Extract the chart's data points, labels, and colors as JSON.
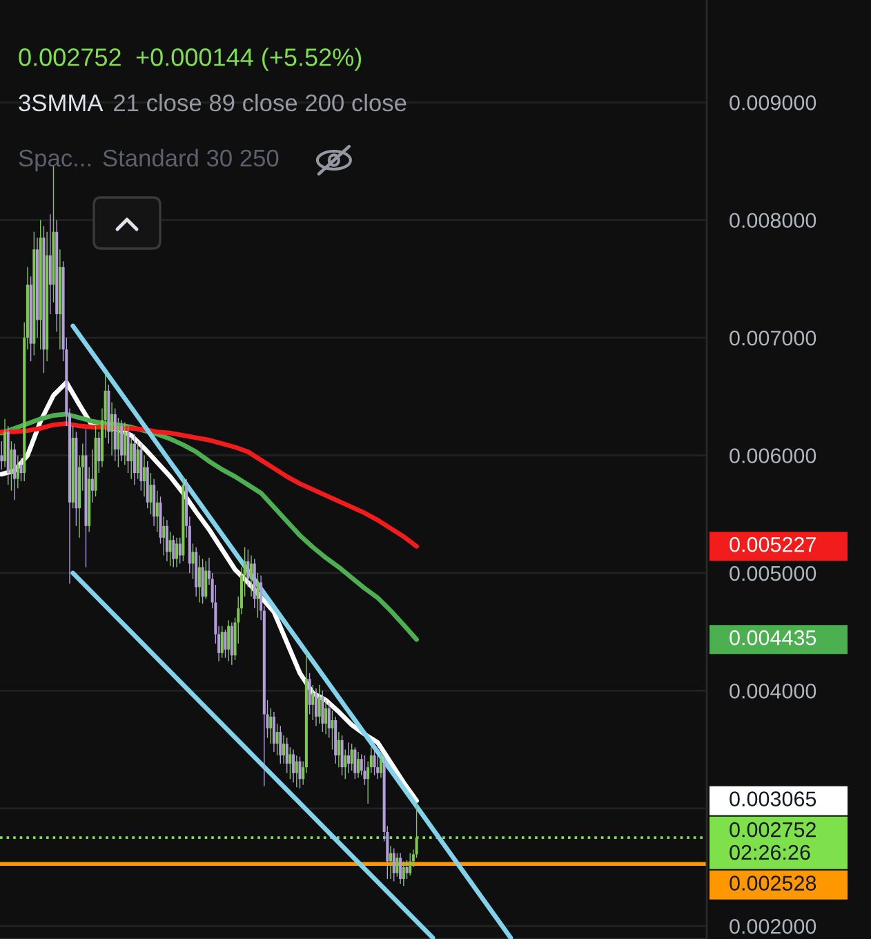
{
  "chart_data": {
    "type": "candlestick",
    "title": "0.002752",
    "subtitle": "+0.000144 (+5.52%)",
    "annotations": [
      "3SMMA",
      "21 close 89 close 200 close",
      "Spac...",
      "Standard 30 250",
      "0.003065",
      "0.004435",
      "0.005227"
    ],
    "categories": [
      null,
      null,
      null,
      null,
      null,
      null,
      null,
      null,
      null,
      null,
      null,
      null,
      null,
      null,
      null,
      null,
      null,
      null,
      null,
      null,
      null,
      null,
      null,
      null,
      null,
      null,
      null,
      null,
      null,
      null,
      null,
      null,
      null,
      null,
      null,
      null,
      null,
      null,
      null,
      null,
      null,
      null,
      null,
      null,
      null,
      null,
      null,
      null,
      null,
      null,
      null,
      null,
      null,
      null,
      null,
      null,
      null,
      null,
      null,
      null,
      null,
      null,
      null,
      null,
      null,
      null,
      null,
      null,
      null,
      null,
      null,
      null,
      null,
      null,
      null,
      null,
      null,
      null,
      null,
      null,
      null,
      null,
      null,
      null,
      null,
      null,
      null,
      null,
      null,
      null,
      null,
      null,
      null,
      null,
      null,
      null,
      null,
      null,
      null,
      null,
      null,
      null,
      null,
      null,
      null,
      null,
      null,
      null,
      null,
      null,
      null,
      null,
      null,
      null,
      null,
      null,
      null,
      null,
      null,
      null,
      null,
      null,
      null,
      null,
      null,
      null,
      null,
      null,
      null,
      null,
      null,
      null,
      null,
      null,
      null,
      null,
      null,
      null,
      null,
      null,
      null,
      null,
      null,
      null,
      null,
      null,
      null,
      null,
      null,
      null,
      null,
      null,
      null,
      null,
      null,
      null,
      null,
      null,
      null,
      null,
      null,
      null,
      null,
      null,
      null,
      null,
      null,
      null,
      null,
      null,
      null,
      null,
      null,
      null,
      null,
      null,
      null,
      null,
      null,
      null,
      null,
      null,
      null,
      null,
      null,
      null,
      null,
      null,
      null,
      null,
      null,
      null,
      null,
      null,
      null,
      null,
      null,
      null,
      null,
      null,
      null,
      null,
      null,
      null,
      null,
      null,
      null,
      null,
      null,
      null,
      null,
      null,
      null,
      null,
      null,
      null,
      null,
      null
    ],
    "ohlc": [
      [
        0.006,
        0.00612,
        0.00588,
        0.00595
      ],
      [
        0.00595,
        0.00631,
        0.0059,
        0.0062
      ],
      [
        0.0062,
        0.00625,
        0.00575,
        0.00585
      ],
      [
        0.00585,
        0.00612,
        0.0057,
        0.00605
      ],
      [
        0.00605,
        0.0061,
        0.00562,
        0.0058
      ],
      [
        0.0058,
        0.006,
        0.00572,
        0.00592
      ],
      [
        0.00592,
        0.00598,
        0.00578,
        0.00585
      ],
      [
        0.00585,
        0.00713,
        0.00578,
        0.007
      ],
      [
        0.007,
        0.0076,
        0.0069,
        0.00745
      ],
      [
        0.00745,
        0.00752,
        0.0068,
        0.00695
      ],
      [
        0.00695,
        0.0079,
        0.00685,
        0.00775
      ],
      [
        0.00775,
        0.00785,
        0.007,
        0.00715
      ],
      [
        0.00715,
        0.008,
        0.0069,
        0.00785
      ],
      [
        0.00785,
        0.00795,
        0.0067,
        0.0069
      ],
      [
        0.0069,
        0.0079,
        0.0068,
        0.0077
      ],
      [
        0.0077,
        0.00805,
        0.0072,
        0.00745
      ],
      [
        0.00745,
        0.00846,
        0.0073,
        0.0079
      ],
      [
        0.0079,
        0.008,
        0.00705,
        0.0072
      ],
      [
        0.0072,
        0.00775,
        0.0069,
        0.0076
      ],
      [
        0.0076,
        0.00765,
        0.0068,
        0.0069
      ],
      [
        0.0069,
        0.007,
        0.00625,
        0.00635
      ],
      [
        0.00635,
        0.0064,
        0.00491,
        0.0056
      ],
      [
        0.0056,
        0.00625,
        0.00555,
        0.00615
      ],
      [
        0.00615,
        0.0062,
        0.0054,
        0.00555
      ],
      [
        0.00555,
        0.006,
        0.0053,
        0.0059
      ],
      [
        0.0059,
        0.0061,
        0.0057,
        0.006
      ],
      [
        0.006,
        0.00622,
        0.00505,
        0.0054
      ],
      [
        0.0054,
        0.0059,
        0.00535,
        0.0058
      ],
      [
        0.0058,
        0.00605,
        0.0056,
        0.0057
      ],
      [
        0.0057,
        0.00625,
        0.00565,
        0.00615
      ],
      [
        0.00615,
        0.0062,
        0.00585,
        0.00595
      ],
      [
        0.00595,
        0.0064,
        0.0059,
        0.0063
      ],
      [
        0.0063,
        0.00669,
        0.00615,
        0.00655
      ],
      [
        0.00655,
        0.0066,
        0.0061,
        0.0062
      ],
      [
        0.0062,
        0.00645,
        0.006,
        0.00635
      ],
      [
        0.00635,
        0.0064,
        0.00595,
        0.00605
      ],
      [
        0.00605,
        0.00632,
        0.0059,
        0.00625
      ],
      [
        0.00625,
        0.0063,
        0.00595,
        0.006
      ],
      [
        0.006,
        0.00628,
        0.00592,
        0.0062
      ],
      [
        0.0062,
        0.00625,
        0.00585,
        0.00595
      ],
      [
        0.00595,
        0.00615,
        0.0058,
        0.0061
      ],
      [
        0.0061,
        0.00618,
        0.00575,
        0.00585
      ],
      [
        0.00585,
        0.00612,
        0.0058,
        0.00605
      ],
      [
        0.00605,
        0.0061,
        0.0057,
        0.00578
      ],
      [
        0.00578,
        0.006,
        0.00565,
        0.0059
      ],
      [
        0.0059,
        0.00595,
        0.00555,
        0.0056
      ],
      [
        0.0056,
        0.00585,
        0.0055,
        0.00575
      ],
      [
        0.00575,
        0.0058,
        0.0054,
        0.00548
      ],
      [
        0.00548,
        0.0057,
        0.00535,
        0.0056
      ],
      [
        0.0056,
        0.00565,
        0.00525,
        0.0053
      ],
      [
        0.0053,
        0.00548,
        0.00515,
        0.0054
      ],
      [
        0.0054,
        0.00545,
        0.0051,
        0.00518
      ],
      [
        0.00518,
        0.00535,
        0.00506,
        0.00528
      ],
      [
        0.00528,
        0.00532,
        0.00505,
        0.00512
      ],
      [
        0.00512,
        0.0053,
        0.00505,
        0.00525
      ],
      [
        0.00525,
        0.0053,
        0.00508,
        0.00515
      ],
      [
        0.00515,
        0.00582,
        0.0051,
        0.00575
      ],
      [
        0.00575,
        0.0058,
        0.0053,
        0.0054
      ],
      [
        0.0054,
        0.00548,
        0.005,
        0.00508
      ],
      [
        0.00508,
        0.00525,
        0.00495,
        0.00518
      ],
      [
        0.00518,
        0.00522,
        0.0048,
        0.00488
      ],
      [
        0.00488,
        0.00515,
        0.00475,
        0.00505
      ],
      [
        0.00505,
        0.00512,
        0.00474,
        0.0048
      ],
      [
        0.0048,
        0.0051,
        0.00478,
        0.00502
      ],
      [
        0.00502,
        0.00513,
        0.0049,
        0.00495
      ],
      [
        0.00495,
        0.005,
        0.0047,
        0.00475
      ],
      [
        0.00475,
        0.0049,
        0.0044,
        0.00448
      ],
      [
        0.00448,
        0.00455,
        0.00425,
        0.00432
      ],
      [
        0.00432,
        0.00455,
        0.00428,
        0.0045
      ],
      [
        0.0045,
        0.00452,
        0.00428,
        0.00435
      ],
      [
        0.00435,
        0.0046,
        0.00425,
        0.00455
      ],
      [
        0.00455,
        0.00458,
        0.00422,
        0.0043
      ],
      [
        0.0043,
        0.00462,
        0.00426,
        0.00458
      ],
      [
        0.00458,
        0.0048,
        0.0044,
        0.0047
      ],
      [
        0.0047,
        0.00505,
        0.00465,
        0.00498
      ],
      [
        0.00498,
        0.00522,
        0.0048,
        0.0051
      ],
      [
        0.0051,
        0.0052,
        0.00488,
        0.00495
      ],
      [
        0.00495,
        0.00515,
        0.0048,
        0.00508
      ],
      [
        0.00508,
        0.00512,
        0.0047,
        0.00478
      ],
      [
        0.00478,
        0.005,
        0.00462,
        0.00492
      ],
      [
        0.00492,
        0.00498,
        0.0046,
        0.00468
      ],
      [
        0.00468,
        0.00472,
        0.00319,
        0.0038
      ],
      [
        0.0038,
        0.00392,
        0.0036,
        0.00368
      ],
      [
        0.00368,
        0.00385,
        0.00355,
        0.00378
      ],
      [
        0.00378,
        0.00382,
        0.00348,
        0.00355
      ],
      [
        0.00355,
        0.00372,
        0.00345,
        0.00365
      ],
      [
        0.00365,
        0.0037,
        0.00338,
        0.00345
      ],
      [
        0.00345,
        0.00362,
        0.00338,
        0.00355
      ],
      [
        0.00355,
        0.0036,
        0.0033,
        0.00338
      ],
      [
        0.00338,
        0.00352,
        0.00325,
        0.00346
      ],
      [
        0.00346,
        0.0035,
        0.00322,
        0.0033
      ],
      [
        0.0033,
        0.00345,
        0.00318,
        0.0034
      ],
      [
        0.0034,
        0.00344,
        0.00317,
        0.00325
      ],
      [
        0.00325,
        0.0034,
        0.0032,
        0.00335
      ],
      [
        0.00335,
        0.00432,
        0.0033,
        0.0041
      ],
      [
        0.0041,
        0.00415,
        0.0038,
        0.00388
      ],
      [
        0.00388,
        0.00405,
        0.00375,
        0.00398
      ],
      [
        0.00398,
        0.00402,
        0.0037,
        0.00378
      ],
      [
        0.00378,
        0.00405,
        0.00372,
        0.00395
      ],
      [
        0.00395,
        0.004,
        0.00365,
        0.00372
      ],
      [
        0.00372,
        0.00392,
        0.00363,
        0.00385
      ],
      [
        0.00385,
        0.0039,
        0.0036,
        0.00368
      ],
      [
        0.00368,
        0.00383,
        0.0035,
        0.00375
      ],
      [
        0.00375,
        0.00378,
        0.00338,
        0.00345
      ],
      [
        0.00345,
        0.00365,
        0.00335,
        0.00358
      ],
      [
        0.00358,
        0.00362,
        0.00328,
        0.00335
      ],
      [
        0.00335,
        0.0035,
        0.00325,
        0.00345
      ],
      [
        0.00345,
        0.00356,
        0.0033,
        0.00338
      ],
      [
        0.00338,
        0.00355,
        0.00332,
        0.0035
      ],
      [
        0.0035,
        0.00352,
        0.00325,
        0.0033
      ],
      [
        0.0033,
        0.00348,
        0.00326,
        0.00342
      ],
      [
        0.00342,
        0.00346,
        0.00328,
        0.00332
      ],
      [
        0.00332,
        0.00345,
        0.0032,
        0.00325
      ],
      [
        0.00325,
        0.0034,
        0.00304,
        0.00335
      ],
      [
        0.00335,
        0.00352,
        0.0033,
        0.00345
      ],
      [
        0.00345,
        0.0035,
        0.00328,
        0.00335
      ],
      [
        0.00335,
        0.00345,
        0.00325,
        0.0033
      ],
      [
        0.0033,
        0.00348,
        0.00326,
        0.00342
      ],
      [
        0.00338,
        0.00342,
        0.00272,
        0.0028
      ],
      [
        0.0028,
        0.00285,
        0.0024,
        0.00255
      ],
      [
        0.00255,
        0.00268,
        0.0024,
        0.00262
      ],
      [
        0.00262,
        0.00266,
        0.00238,
        0.00245
      ],
      [
        0.00245,
        0.00262,
        0.00242,
        0.00258
      ],
      [
        0.00258,
        0.00262,
        0.00236,
        0.0024
      ],
      [
        0.0024,
        0.00255,
        0.00234,
        0.0025
      ],
      [
        0.0025,
        0.00256,
        0.0024,
        0.00245
      ],
      [
        0.00245,
        0.00262,
        0.00243,
        0.00255
      ],
      [
        0.00255,
        0.00265,
        0.0025,
        0.00261
      ],
      [
        0.00261,
        0.00304,
        0.00258,
        0.002752
      ],
      null,
      null,
      null,
      null,
      null,
      null,
      null,
      null,
      null,
      null,
      null,
      null,
      null,
      null,
      null,
      null,
      null,
      null,
      null,
      null,
      null,
      null,
      null,
      null,
      null,
      null,
      null,
      null,
      null,
      null,
      null,
      null,
      null,
      null,
      null,
      null,
      null,
      null,
      null,
      null,
      null,
      null,
      null,
      null,
      null,
      null,
      null,
      null,
      null,
      null,
      null,
      null,
      null,
      null,
      null,
      null,
      null,
      null,
      null,
      null,
      null,
      null,
      null,
      null,
      null,
      null,
      null,
      null,
      null,
      null,
      null,
      null,
      null,
      null,
      null,
      null,
      null,
      null,
      null,
      null,
      null,
      null,
      null,
      null,
      null,
      null,
      null,
      null,
      null
    ],
    "colors": [
      "#b39ddb",
      "#7cc94e",
      "#b39ddb",
      "#7cc94e",
      "#b39ddb",
      "#7cc94e",
      "#b39ddb",
      "#7cc94e",
      "#7cc94e",
      "#b39ddb",
      "#7cc94e",
      "#b39ddb",
      "#7cc94e",
      "#b39ddb",
      "#7cc94e",
      "#b39ddb",
      "#7cc94e",
      "#b39ddb",
      "#7cc94e",
      "#b39ddb",
      "#b39ddb",
      "#b39ddb",
      "#7cc94e",
      "#b39ddb",
      "#7cc94e",
      "#7cc94e",
      "#b39ddb",
      "#7cc94e",
      "#b39ddb",
      "#7cc94e",
      "#b39ddb",
      "#7cc94e",
      "#7cc94e",
      "#b39ddb",
      "#7cc94e",
      "#b39ddb",
      "#7cc94e",
      "#b39ddb",
      "#7cc94e",
      "#b39ddb",
      "#7cc94e",
      "#b39ddb",
      "#7cc94e",
      "#b39ddb",
      "#7cc94e",
      "#b39ddb",
      "#7cc94e",
      "#b39ddb",
      "#7cc94e",
      "#b39ddb",
      "#7cc94e",
      "#b39ddb",
      "#7cc94e",
      "#b39ddb",
      "#7cc94e",
      "#b39ddb",
      "#7cc94e",
      "#b39ddb",
      "#b39ddb",
      "#7cc94e",
      "#b39ddb",
      "#7cc94e",
      "#b39ddb",
      "#7cc94e",
      "#b39ddb",
      "#b39ddb",
      "#b39ddb",
      "#b39ddb",
      "#7cc94e",
      "#b39ddb",
      "#7cc94e",
      "#b39ddb",
      "#7cc94e",
      "#7cc94e",
      "#7cc94e",
      "#7cc94e",
      "#b39ddb",
      "#7cc94e",
      "#b39ddb",
      "#7cc94e",
      "#b39ddb",
      "#b39ddb",
      "#b39ddb",
      "#7cc94e",
      "#b39ddb",
      "#7cc94e",
      "#b39ddb",
      "#7cc94e",
      "#b39ddb",
      "#7cc94e",
      "#b39ddb",
      "#7cc94e",
      "#b39ddb",
      "#7cc94e",
      "#7cc94e",
      "#b39ddb",
      "#7cc94e",
      "#b39ddb",
      "#7cc94e",
      "#b39ddb",
      "#7cc94e",
      "#b39ddb",
      "#7cc94e",
      "#b39ddb",
      "#7cc94e",
      "#b39ddb",
      "#7cc94e",
      "#b39ddb",
      "#7cc94e",
      "#b39ddb",
      "#7cc94e",
      "#b39ddb",
      "#b39ddb",
      "#7cc94e",
      "#7cc94e",
      "#b39ddb",
      "#b39ddb",
      "#7cc94e",
      "#b39ddb",
      "#b39ddb",
      "#7cc94e",
      "#b39ddb",
      "#7cc94e",
      "#b39ddb",
      "#7cc94e",
      "#b39ddb",
      "#7cc94e",
      "#7cc94e",
      "#7cc94e",
      null,
      null,
      null,
      null,
      null,
      null,
      null,
      null,
      null,
      null,
      null,
      null,
      null,
      null,
      null,
      null,
      null,
      null,
      null,
      null,
      null,
      null,
      null,
      null,
      null,
      null,
      null,
      null,
      null,
      null,
      null,
      null,
      null,
      null,
      null,
      null,
      null,
      null,
      null,
      null,
      null,
      null,
      null,
      null,
      null,
      null,
      null,
      null,
      null,
      null,
      null,
      null,
      null,
      null,
      null,
      null,
      null,
      null,
      null,
      null,
      null,
      null,
      null,
      null,
      null,
      null,
      null,
      null,
      null,
      null,
      null,
      null,
      null,
      null,
      null,
      null,
      null,
      null,
      null,
      null,
      null,
      null,
      null,
      null,
      null,
      null,
      null,
      null,
      null
    ],
    "series": [
      {
        "type": "line",
        "color": "#ffffff",
        "values": [
          0.00584,
          null,
          null,
          null,
          0.00587,
          null,
          null,
          null,
          0.006,
          null,
          null,
          null,
          0.00629,
          null,
          null,
          null,
          0.00651,
          null,
          null,
          null,
          0.00662,
          null,
          null,
          null,
          0.00643,
          null,
          null,
          null,
          0.00625,
          null,
          null,
          null,
          0.00624,
          null,
          null,
          null,
          0.00622,
          null,
          null,
          null,
          0.00617,
          null,
          null,
          null,
          0.00606,
          null,
          null,
          null,
          0.00594,
          null,
          null,
          null,
          0.00582,
          null,
          null,
          null,
          0.00568,
          null,
          null,
          null,
          0.00552,
          null,
          null,
          null,
          0.00537,
          null,
          null,
          null,
          0.0052,
          null,
          null,
          null,
          0.00503,
          null,
          null,
          null,
          0.00492,
          null,
          null,
          null,
          null,
          null,
          null,
          null,
          0.00467,
          null,
          null,
          null,
          0.00441,
          null,
          null,
          null,
          0.00415,
          null,
          null,
          null,
          0.00398,
          null,
          null,
          null,
          0.00392,
          null,
          null,
          null,
          0.00382,
          null,
          null,
          null,
          0.00371,
          null,
          null,
          null,
          0.00363,
          null,
          null,
          null,
          0.00356,
          null,
          null,
          null,
          0.00339,
          null,
          null,
          null,
          0.00322,
          null,
          null,
          null,
          0.003065,
          null,
          null,
          null,
          null,
          null,
          null,
          null,
          null,
          null,
          null,
          null,
          null,
          null,
          null,
          null,
          null,
          null,
          null,
          null,
          null,
          null,
          null,
          null,
          null,
          null,
          null,
          null,
          null,
          null,
          null,
          null,
          null,
          null,
          null,
          null,
          null,
          null,
          null,
          null,
          null,
          null,
          null,
          null,
          null,
          null,
          null,
          null,
          null,
          null,
          null,
          null,
          null,
          null,
          null,
          null,
          null,
          null,
          null,
          null,
          null,
          null,
          null,
          null,
          null,
          null,
          null,
          null,
          null,
          null,
          null,
          null,
          null,
          null,
          null,
          null,
          null,
          null,
          null,
          null,
          null,
          null,
          null,
          null,
          null,
          null,
          null,
          null,
          null,
          null
        ]
      },
      {
        "type": "line",
        "color": "#4caf50",
        "values": [
          0.00619,
          null,
          null,
          null,
          0.00623,
          null,
          null,
          null,
          0.00627,
          null,
          null,
          null,
          0.00631,
          null,
          null,
          null,
          0.00634,
          null,
          null,
          null,
          0.00635,
          null,
          null,
          null,
          0.00632,
          null,
          null,
          null,
          0.00629,
          null,
          null,
          null,
          0.00627,
          null,
          null,
          null,
          0.00626,
          null,
          null,
          null,
          0.00624,
          null,
          null,
          null,
          0.00621,
          null,
          null,
          null,
          0.00618,
          null,
          null,
          null,
          0.00614,
          null,
          null,
          null,
          0.00609,
          null,
          null,
          null,
          0.00603,
          null,
          null,
          null,
          0.00595,
          null,
          null,
          null,
          0.00588,
          null,
          null,
          null,
          0.00582,
          null,
          null,
          null,
          0.00575,
          null,
          null,
          null,
          0.00568,
          null,
          null,
          null,
          0.00556,
          null,
          null,
          null,
          0.00544,
          null,
          null,
          null,
          0.00532,
          null,
          null,
          null,
          0.00522,
          null,
          null,
          null,
          0.00513,
          null,
          null,
          null,
          0.00505,
          null,
          null,
          null,
          0.00496,
          null,
          null,
          null,
          0.00487,
          null,
          null,
          null,
          0.00479,
          null,
          null,
          null,
          0.00468,
          null,
          null,
          null,
          0.00456,
          null,
          null,
          null,
          0.004435,
          null,
          null,
          null,
          null,
          null,
          null,
          null,
          null,
          null,
          null,
          null,
          null,
          null,
          null,
          null,
          null,
          null,
          null,
          null,
          null,
          null,
          null,
          null,
          null,
          null,
          null,
          null,
          null,
          null,
          null,
          null,
          null,
          null,
          null,
          null,
          null,
          null,
          null,
          null,
          null,
          null,
          null,
          null,
          null,
          null,
          null,
          null,
          null,
          null,
          null,
          null,
          null,
          null,
          null,
          null,
          null,
          null,
          null,
          null,
          null,
          null,
          null,
          null,
          null,
          null,
          null,
          null,
          null,
          null,
          null,
          null,
          null,
          null,
          null,
          null,
          null,
          null,
          null,
          null,
          null,
          null,
          null,
          null,
          null,
          null,
          null,
          null,
          null,
          null
        ]
      },
      {
        "type": "line",
        "color": "#f21c1c",
        "values": [
          0.0062,
          null,
          null,
          null,
          0.0062,
          null,
          null,
          null,
          0.00621,
          null,
          null,
          null,
          0.00623,
          null,
          null,
          null,
          0.00626,
          null,
          null,
          null,
          0.00627,
          null,
          null,
          null,
          0.00625,
          null,
          null,
          null,
          0.00624,
          null,
          null,
          null,
          0.00624,
          null,
          null,
          null,
          0.00623,
          null,
          null,
          null,
          0.00623,
          null,
          null,
          null,
          0.00622,
          null,
          null,
          null,
          0.0062,
          null,
          null,
          null,
          0.00619,
          null,
          null,
          null,
          0.00617,
          null,
          null,
          null,
          0.00615,
          null,
          null,
          null,
          0.00613,
          null,
          null,
          null,
          0.0061,
          null,
          null,
          null,
          0.00607,
          null,
          null,
          null,
          0.00603,
          null,
          null,
          null,
          0.00596,
          null,
          null,
          null,
          0.00589,
          null,
          null,
          null,
          0.00582,
          null,
          null,
          null,
          0.00576,
          null,
          null,
          null,
          0.00571,
          null,
          null,
          null,
          0.00566,
          null,
          null,
          null,
          0.00561,
          null,
          null,
          null,
          0.00556,
          null,
          null,
          null,
          0.00551,
          null,
          null,
          null,
          0.00545,
          null,
          null,
          null,
          0.00538,
          null,
          null,
          null,
          0.00531,
          null,
          null,
          null,
          0.005227,
          null,
          null,
          null,
          null,
          null,
          null,
          null,
          null,
          null,
          null,
          null,
          null,
          null,
          null,
          null,
          null,
          null,
          null,
          null,
          null,
          null,
          null,
          null,
          null,
          null,
          null,
          null,
          null,
          null,
          null,
          null,
          null,
          null,
          null,
          null,
          null,
          null,
          null,
          null,
          null,
          null,
          null,
          null,
          null,
          null,
          null,
          null,
          null,
          null,
          null,
          null,
          null,
          null,
          null,
          null,
          null,
          null,
          null,
          null,
          null,
          null,
          null,
          null,
          null,
          null,
          null,
          null,
          null,
          null,
          null,
          null,
          null,
          null,
          null,
          null,
          null,
          null,
          null,
          null,
          null,
          null,
          null,
          null,
          null,
          null,
          null,
          null,
          null,
          null
        ]
      },
      {
        "type": "line",
        "color": "#80d3ea",
        "values": [
          null,
          null,
          null,
          null,
          null,
          null,
          null,
          null,
          null,
          null,
          null,
          null,
          null,
          null,
          null,
          null,
          null,
          null,
          null,
          null,
          null,
          null,
          0.0071,
          null,
          null,
          null,
          null,
          null,
          null,
          null,
          null,
          null,
          null,
          null,
          null,
          null,
          null,
          null,
          null,
          null,
          null,
          null,
          null,
          null,
          null,
          null,
          null,
          null,
          null,
          null,
          null,
          null,
          null,
          null,
          null,
          null,
          null,
          null,
          null,
          null,
          null,
          null,
          null,
          null,
          null,
          null,
          null,
          null,
          null,
          null,
          null,
          null,
          null,
          null,
          null,
          null,
          null,
          null,
          null,
          null,
          null,
          null,
          null,
          null,
          null,
          null,
          null,
          null,
          null,
          null,
          null,
          null,
          null,
          null,
          null,
          null,
          null,
          null,
          null,
          null,
          null,
          null,
          null,
          null,
          null,
          null,
          null,
          null,
          null,
          null,
          null,
          null,
          null,
          null,
          null,
          null,
          null,
          null,
          null,
          null,
          null,
          null,
          null,
          null,
          null,
          null,
          null,
          null,
          null,
          null,
          null,
          null,
          null,
          null,
          null,
          null,
          null,
          null,
          null,
          null,
          null,
          null,
          null,
          null,
          null,
          null,
          null,
          null,
          null,
          null,
          null,
          null,
          null,
          null,
          null,
          null,
          null,
          0.0019,
          null,
          null,
          null,
          null,
          null,
          null,
          null,
          null,
          null,
          null,
          null,
          null,
          null,
          null,
          null,
          null,
          null,
          null,
          null,
          null,
          null,
          null,
          null,
          null,
          null,
          null,
          null,
          null,
          null,
          null,
          null,
          null,
          null,
          null,
          null,
          null,
          null,
          null,
          null,
          null,
          null,
          null,
          null,
          null,
          null,
          null,
          null,
          null,
          null,
          null,
          null,
          null,
          null,
          null,
          null,
          null,
          null,
          null,
          null,
          null
        ]
      },
      {
        "type": "line",
        "color": "#80d3ea",
        "values": [
          null,
          null,
          null,
          null,
          null,
          null,
          null,
          null,
          null,
          null,
          null,
          null,
          null,
          null,
          null,
          null,
          null,
          null,
          null,
          null,
          null,
          null,
          0.005,
          null,
          null,
          null,
          null,
          null,
          null,
          null,
          null,
          null,
          null,
          null,
          null,
          null,
          null,
          null,
          null,
          null,
          null,
          null,
          null,
          null,
          null,
          null,
          null,
          null,
          null,
          null,
          null,
          null,
          null,
          null,
          null,
          null,
          null,
          null,
          null,
          null,
          null,
          null,
          null,
          null,
          null,
          null,
          null,
          null,
          null,
          null,
          null,
          null,
          null,
          null,
          null,
          null,
          null,
          null,
          null,
          null,
          null,
          null,
          null,
          null,
          null,
          null,
          null,
          null,
          null,
          null,
          null,
          null,
          null,
          null,
          null,
          null,
          null,
          null,
          null,
          null,
          null,
          null,
          null,
          null,
          null,
          null,
          null,
          null,
          null,
          null,
          null,
          null,
          null,
          null,
          null,
          null,
          null,
          null,
          null,
          null,
          null,
          null,
          null,
          null,
          null,
          null,
          null,
          null,
          null,
          null,
          null,
          null,
          null,
          0.0019,
          null,
          null,
          null,
          null,
          null,
          null,
          null,
          null,
          null,
          null,
          null,
          null,
          null,
          null,
          null,
          null,
          null,
          null,
          null,
          null,
          null,
          null,
          null,
          null,
          null,
          null,
          null,
          null,
          null,
          null,
          null,
          null,
          null,
          null,
          null,
          null,
          null,
          null,
          null,
          null,
          null,
          null,
          null,
          null,
          null,
          null,
          null,
          null,
          null,
          null,
          null,
          null,
          null,
          null,
          null,
          null,
          null,
          null,
          null,
          null,
          null,
          null,
          null,
          null,
          null,
          null,
          null,
          null,
          null,
          null,
          null,
          null,
          null,
          null,
          null,
          null,
          null,
          null,
          null,
          null,
          null,
          null,
          null,
          null
        ]
      }
    ],
    "ref_lines": [
      {
        "axis": "y",
        "value": 0.002752,
        "label": "0.002752\n02:26:26",
        "color": "#7ee04a",
        "line_style": "dotted"
      },
      {
        "axis": "y",
        "value": 0.002528,
        "label": "0.002528",
        "color": "#ff9800",
        "line_style": "solid"
      }
    ],
    "ylim": [
      0.00189,
      0.00987
    ],
    "yticks": [
      {
        "value": 0.002,
        "label": "0.002000"
      },
      {
        "value": 0.003,
        "label": null
      },
      {
        "value": 0.004,
        "label": "0.004000"
      },
      {
        "value": 0.005,
        "label": "0.005000"
      },
      {
        "value": 0.006,
        "label": "0.006000"
      },
      {
        "value": 0.007,
        "label": "0.007000"
      },
      {
        "value": 0.008,
        "label": "0.008000"
      },
      {
        "value": 0.009,
        "label": "0.009000"
      }
    ],
    "tick_labels": "y",
    "grid": "y"
  }
}
